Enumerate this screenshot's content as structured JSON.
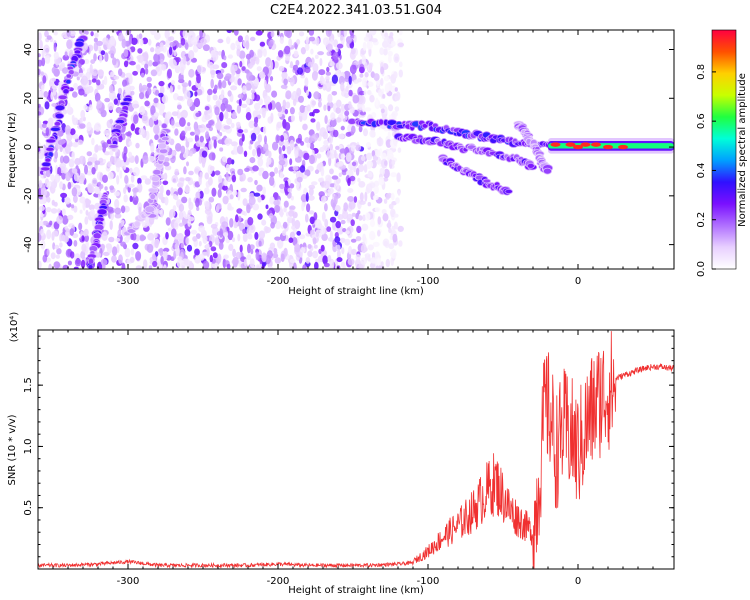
{
  "title": "C2E4.2022.341.03.51.G04",
  "colors": {
    "snr_line": "#f03030",
    "axis": "#000000",
    "colormap": [
      "#ffffff",
      "#e8d0ff",
      "#b070ff",
      "#7a10ff",
      "#3010ff",
      "#00a0ff",
      "#00ffd8",
      "#20ff40",
      "#c8ff00",
      "#ffd000",
      "#ff5000",
      "#ff0040"
    ]
  },
  "chart_data": [
    {
      "type": "heatmap",
      "xlabel": "Height of straight line (km)",
      "ylabel": "Frequency (Hz)",
      "xlim": [
        -360,
        64
      ],
      "ylim": [
        -50,
        48
      ],
      "xticks": [
        -300,
        -200,
        -100,
        0
      ],
      "xtick_labels": [
        "-300",
        "-200",
        "-100",
        "0"
      ],
      "yticks": [
        -40,
        -20,
        0,
        20,
        40
      ],
      "ytick_labels": [
        "-40",
        "-20",
        "0",
        "20",
        "40"
      ],
      "colorbar": {
        "label": "Normalized spectral amplitude",
        "range": [
          0,
          0.97
        ],
        "ticks": [
          0.0,
          0.2,
          0.4,
          0.6,
          0.8
        ],
        "tick_labels": [
          "0.0",
          "0.2",
          "0.4",
          "0.6",
          "0.8"
        ]
      },
      "noise_region_x": [
        -360,
        -118
      ],
      "features": [
        {
          "kind": "streak",
          "points": [
            [
              -330,
              45
            ],
            [
              -340,
              28
            ],
            [
              -348,
              8
            ],
            [
              -355,
              -10
            ]
          ],
          "amplitude": 0.35
        },
        {
          "kind": "streak",
          "points": [
            [
              -300,
              20
            ],
            [
              -305,
              10
            ],
            [
              -310,
              0
            ]
          ],
          "amplitude": 0.3
        },
        {
          "kind": "streak",
          "points": [
            [
              -315,
              -20
            ],
            [
              -320,
              -35
            ],
            [
              -326,
              -50
            ]
          ],
          "amplitude": 0.33
        },
        {
          "kind": "streak",
          "points": [
            [
              -275,
              8
            ],
            [
              -280,
              -10
            ],
            [
              -285,
              -30
            ]
          ],
          "amplitude": 0.2
        },
        {
          "kind": "streak",
          "points": [
            [
              -300,
              -35
            ],
            [
              -285,
              -25
            ],
            [
              -275,
              5
            ]
          ],
          "amplitude": 0.15
        },
        {
          "kind": "streak",
          "points": [
            [
              -150,
              10
            ],
            [
              -120,
              9
            ],
            [
              -100,
              9
            ],
            [
              -80,
              6
            ],
            [
              -60,
              4
            ],
            [
              -40,
              2
            ],
            [
              -20,
              1
            ],
            [
              0,
              0
            ],
            [
              20,
              0
            ],
            [
              40,
              0
            ],
            [
              64,
              0
            ]
          ],
          "amplitude": 0.35
        },
        {
          "kind": "streak",
          "points": [
            [
              -120,
              4
            ],
            [
              -100,
              3
            ],
            [
              -80,
              0
            ],
            [
              -60,
              -2
            ],
            [
              -40,
              -5
            ],
            [
              -30,
              -8
            ]
          ],
          "amplitude": 0.3
        },
        {
          "kind": "streak",
          "points": [
            [
              -90,
              -5
            ],
            [
              -75,
              -10
            ],
            [
              -60,
              -15
            ],
            [
              -45,
              -18
            ]
          ],
          "amplitude": 0.3
        },
        {
          "kind": "streak",
          "points": [
            [
              -40,
              10
            ],
            [
              -35,
              6
            ],
            [
              -32,
              2
            ]
          ],
          "amplitude": 0.2
        },
        {
          "kind": "streak",
          "points": [
            [
              -30,
              2
            ],
            [
              -25,
              -5
            ],
            [
              -20,
              -10
            ]
          ],
          "amplitude": 0.2
        },
        {
          "kind": "band",
          "x_range": [
            -20,
            64
          ],
          "center": 0.5,
          "width": 4,
          "amplitude": 0.6
        },
        {
          "kind": "peak_dots",
          "points": [
            [
              -15,
              1
            ],
            [
              -5,
              1
            ],
            [
              0,
              0
            ],
            [
              5,
              1
            ],
            [
              12,
              1
            ],
            [
              20,
              0
            ],
            [
              30,
              0
            ]
          ],
          "amplitude": 0.95
        }
      ]
    },
    {
      "type": "line",
      "xlabel": "Height of straight line (km)",
      "ylabel": "SNR (10 * v/v)",
      "y_scale_label": "(x10⁴)",
      "xlim": [
        -360,
        64
      ],
      "ylim": [
        0,
        1.95
      ],
      "xticks": [
        -300,
        -200,
        -100,
        0
      ],
      "xtick_labels": [
        "-300",
        "-200",
        "-100",
        "0"
      ],
      "yticks": [
        0.5,
        1.0,
        1.5
      ],
      "ytick_labels": [
        "0.5",
        "1.0",
        "1.5"
      ],
      "series": [
        {
          "x": [
            -360,
            -340,
            -320,
            -300,
            -280,
            -260,
            -240,
            -220,
            -200,
            -180,
            -160,
            -140,
            -120,
            -110,
            -100,
            -90,
            -80,
            -70,
            -60,
            -55,
            -50,
            -45,
            -40,
            -35,
            -30,
            -25,
            -22,
            -18,
            -15,
            -12,
            -10,
            -5,
            0,
            5,
            10,
            15,
            20,
            25,
            30,
            35,
            40,
            45,
            50,
            55,
            60,
            64
          ],
          "y": [
            0.03,
            0.03,
            0.04,
            0.06,
            0.03,
            0.03,
            0.03,
            0.03,
            0.04,
            0.03,
            0.03,
            0.03,
            0.04,
            0.05,
            0.12,
            0.22,
            0.3,
            0.4,
            0.55,
            0.6,
            0.5,
            0.4,
            0.35,
            0.3,
            0.25,
            0.9,
            1.4,
            1.3,
            1.0,
            1.1,
            1.2,
            1.15,
            1.0,
            1.2,
            1.35,
            1.45,
            1.5,
            1.55,
            1.58,
            1.6,
            1.62,
            1.64,
            1.65,
            1.65,
            1.64,
            1.64
          ]
        }
      ]
    }
  ]
}
